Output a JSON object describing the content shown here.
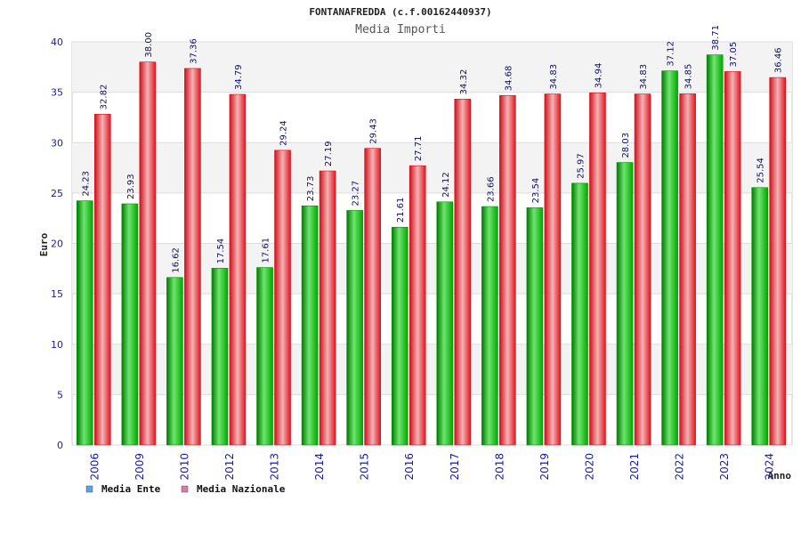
{
  "chart_data": {
    "type": "bar",
    "title": "FONTANAFREDDA (c.f.00162440937)",
    "subtitle": "Media Importi",
    "ylabel": "Euro",
    "xlabel": "Anno",
    "ylim": [
      0,
      40
    ],
    "yticks": [
      0,
      5,
      10,
      15,
      20,
      25,
      30,
      35,
      40
    ],
    "ytick_labels": [
      "0",
      "5",
      "10",
      "15",
      "20",
      "25",
      "30",
      "35",
      "40"
    ],
    "categories": [
      "2006",
      "2009",
      "2010",
      "2012",
      "2013",
      "2014",
      "2015",
      "2016",
      "2017",
      "2018",
      "2019",
      "2020",
      "2021",
      "2022",
      "2023",
      "2024"
    ],
    "series": [
      {
        "name": "Media Ente",
        "color": "#00b000",
        "values": [
          24.23,
          23.93,
          16.62,
          17.54,
          17.61,
          23.73,
          23.27,
          21.61,
          24.12,
          23.66,
          23.54,
          25.97,
          28.03,
          37.12,
          38.71,
          25.54
        ],
        "labels": [
          "24.23",
          "23.93",
          "16.62",
          "17.54",
          "17.61",
          "23.73",
          "23.27",
          "21.61",
          "24.12",
          "23.66",
          "23.54",
          "25.97",
          "28.03",
          "37.12",
          "38.71",
          "25.54"
        ]
      },
      {
        "name": "Media Nazionale",
        "color": "#e8141e",
        "values": [
          32.82,
          38.0,
          37.36,
          34.79,
          29.24,
          27.19,
          29.43,
          27.71,
          34.32,
          34.68,
          34.83,
          34.94,
          34.83,
          34.85,
          37.05,
          36.46
        ],
        "labels": [
          "32.82",
          "38.00",
          "37.36",
          "34.79",
          "29.24",
          "27.19",
          "29.43",
          "27.71",
          "34.32",
          "34.68",
          "34.83",
          "34.94",
          "34.83",
          "34.85",
          "37.05",
          "36.46"
        ]
      }
    ],
    "legend": [
      {
        "label": "Media Ente",
        "color": "#5aa0ea"
      },
      {
        "label": "Media Nazionale",
        "color": "#d87aa8"
      }
    ],
    "legend_position": "bottom-left",
    "grid": true
  }
}
